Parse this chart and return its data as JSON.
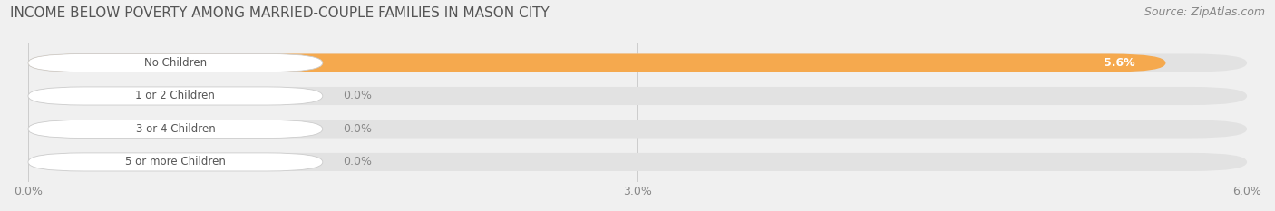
{
  "title": "INCOME BELOW POVERTY AMONG MARRIED-COUPLE FAMILIES IN MASON CITY",
  "source": "Source: ZipAtlas.com",
  "categories": [
    "No Children",
    "1 or 2 Children",
    "3 or 4 Children",
    "5 or more Children"
  ],
  "values": [
    5.6,
    0.0,
    0.0,
    0.0
  ],
  "bar_colors": [
    "#F5A94E",
    "#F2A0A0",
    "#A9C4DE",
    "#C8B8D5"
  ],
  "xlim": [
    0,
    6.0
  ],
  "xticks": [
    0.0,
    3.0,
    6.0
  ],
  "xtick_labels": [
    "0.0%",
    "3.0%",
    "6.0%"
  ],
  "background_color": "#f0f0f0",
  "bar_background_color": "#e2e2e2",
  "title_fontsize": 11,
  "source_fontsize": 9,
  "tick_fontsize": 9,
  "label_fontsize": 8.5,
  "value_fontsize": 9
}
